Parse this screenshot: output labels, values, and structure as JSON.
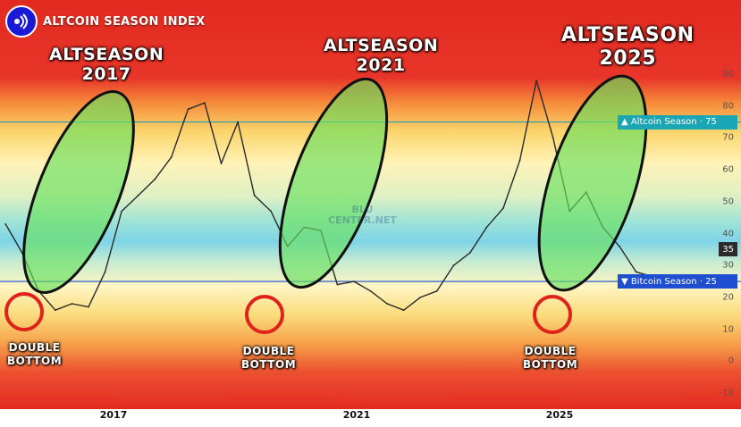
{
  "header": {
    "title": "ALTCOIN SEASON INDEX"
  },
  "annotations": {
    "alt2017": [
      "ALTSEASON",
      "2017"
    ],
    "alt2021": [
      "ALTSEASON",
      "2021"
    ],
    "alt2025": [
      "ALTSEASON",
      "2025"
    ],
    "double_bottom": [
      "DOUBLE",
      "BOTTOM"
    ],
    "watermark": [
      "BLU",
      "CENTER.NET"
    ]
  },
  "colors": {
    "brand_logo": "#1a1ad6",
    "altcoin_season_line": "#1aa6b5",
    "bitcoin_season_line": "#1f4fd1",
    "index_line": "#2a2a2a",
    "ellipse_fill": "#69e060",
    "circle_stroke": "#e0221c"
  },
  "chart_data": {
    "type": "line",
    "title": "ALTCOIN SEASON INDEX",
    "xlabel": "",
    "ylabel": "",
    "ylim": [
      -10,
      90
    ],
    "y_ticks": [
      -10,
      0,
      10,
      20,
      30,
      40,
      50,
      60,
      70,
      80,
      90
    ],
    "x_tick_labels": [
      "2017",
      "2021",
      "2025"
    ],
    "current_value": 35,
    "reference_lines": [
      {
        "name": "Altcoin Season",
        "value": 75,
        "label": "▲ Altcoin Season · 75"
      },
      {
        "name": "Bitcoin Season",
        "value": 25,
        "label": "▼ Bitcoin Season · 25"
      }
    ],
    "series": [
      {
        "name": "",
        "x": [
          2014.0,
          2014.3,
          2014.6,
          2014.9,
          2015.2,
          2015.5,
          2015.8,
          2016.1,
          2016.4,
          2016.7,
          2017.0,
          2017.3,
          2017.6,
          2017.9,
          2018.2,
          2018.5,
          2018.8,
          2019.1,
          2019.4,
          2019.7,
          2020.0,
          2020.3,
          2020.6,
          2020.9,
          2021.2,
          2021.5,
          2021.8,
          2022.1,
          2022.4,
          2022.7,
          2023.0,
          2023.3,
          2023.6,
          2023.9,
          2024.2,
          2024.5,
          2024.8,
          2025.1,
          2025.4,
          2025.6
        ],
        "values": [
          43,
          34,
          22,
          16,
          18,
          17,
          28,
          47,
          52,
          57,
          64,
          79,
          81,
          62,
          75,
          52,
          47,
          36,
          42,
          41,
          24,
          25,
          22,
          18,
          16,
          20,
          22,
          30,
          34,
          42,
          48,
          63,
          88,
          70,
          47,
          53,
          42,
          36,
          28,
          27
        ]
      }
    ]
  }
}
